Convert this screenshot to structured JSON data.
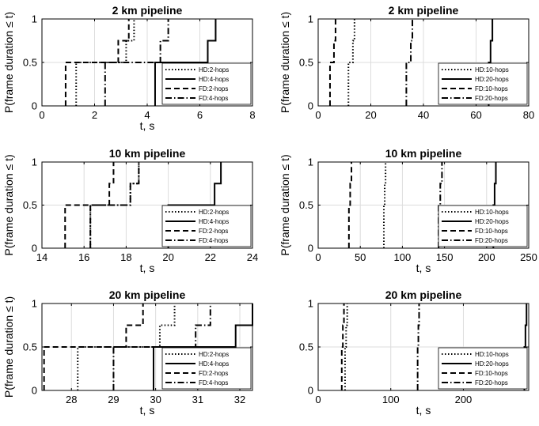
{
  "chart_data": [
    {
      "type": "line",
      "title": "2 km pipeline",
      "xlabel": "t, s",
      "ylabel": "P(frame duration ≤ t)",
      "xlim": [
        0,
        8
      ],
      "ylim": [
        0,
        1
      ],
      "xticks": [
        0,
        2,
        4,
        6,
        8
      ],
      "yticks": [
        0,
        0.5,
        1
      ],
      "grid": true,
      "legend_position": "bottom-right",
      "series": [
        {
          "name": "HD:2-hops",
          "style": "dotted",
          "x": [
            1.3,
            1.3,
            3.2,
            3.2,
            3.5,
            3.5
          ],
          "y": [
            0,
            0.5,
            0.5,
            0.75,
            0.75,
            1
          ]
        },
        {
          "name": "HD:4-hops",
          "style": "solid",
          "x": [
            4.3,
            4.3,
            6.3,
            6.3,
            6.6,
            6.6
          ],
          "y": [
            0,
            0.5,
            0.5,
            0.75,
            0.75,
            1
          ]
        },
        {
          "name": "FD:2-hops",
          "style": "dashed",
          "x": [
            0.9,
            0.9,
            2.9,
            2.9,
            3.3,
            3.3
          ],
          "y": [
            0,
            0.5,
            0.5,
            0.75,
            0.75,
            1
          ]
        },
        {
          "name": "FD:4-hops",
          "style": "dashdot",
          "x": [
            2.4,
            2.4,
            4.5,
            4.5,
            4.8,
            4.8
          ],
          "y": [
            0,
            0.5,
            0.5,
            0.75,
            0.75,
            1
          ]
        }
      ]
    },
    {
      "type": "line",
      "title": "2 km pipeline",
      "xlabel": "",
      "ylabel": "P(frame duration ≤ t)",
      "xlim": [
        0,
        80
      ],
      "ylim": [
        0,
        1
      ],
      "xticks": [
        0,
        20,
        40,
        60,
        80
      ],
      "yticks": [
        0,
        0.5,
        1
      ],
      "grid": true,
      "legend_position": "bottom-right",
      "series": [
        {
          "name": "HD:10-hops",
          "style": "dotted",
          "x": [
            11.5,
            11.5,
            13.2,
            13.2,
            13.8,
            13.8
          ],
          "y": [
            0,
            0.5,
            0.5,
            0.75,
            0.75,
            1
          ]
        },
        {
          "name": "HD:20-hops",
          "style": "solid",
          "x": [
            64.8,
            64.8,
            65.5,
            65.5,
            66.2,
            66.2
          ],
          "y": [
            0,
            0.5,
            0.5,
            0.75,
            0.75,
            1
          ]
        },
        {
          "name": "FD:10-hops",
          "style": "dashed",
          "x": [
            4.5,
            4.5,
            6.0,
            6.0,
            6.6,
            6.6
          ],
          "y": [
            0,
            0.5,
            0.5,
            0.75,
            0.75,
            1
          ]
        },
        {
          "name": "FD:20-hops",
          "style": "dashdot",
          "x": [
            33.5,
            33.5,
            35.2,
            35.2,
            35.8,
            35.8
          ],
          "y": [
            0,
            0.5,
            0.5,
            0.75,
            0.75,
            1
          ]
        }
      ]
    },
    {
      "type": "line",
      "title": "10 km pipeline",
      "xlabel": "t, s",
      "ylabel": "P(frame duration ≤ t)",
      "xlim": [
        14,
        24
      ],
      "ylim": [
        0,
        1
      ],
      "xticks": [
        14,
        16,
        18,
        20,
        22,
        24
      ],
      "yticks": [
        0,
        0.5,
        1
      ],
      "grid": true,
      "legend_position": "bottom-right",
      "series": [
        {
          "name": "HD:2-hops",
          "style": "dotted",
          "x": [
            16.3,
            16.3,
            18.2,
            18.2,
            18.6,
            18.6
          ],
          "y": [
            0,
            0.5,
            0.5,
            0.75,
            0.75,
            1
          ]
        },
        {
          "name": "HD:4-hops",
          "style": "solid",
          "x": [
            20.0,
            20.0,
            22.2,
            22.2,
            22.5,
            22.5
          ],
          "y": [
            0,
            0.5,
            0.5,
            0.75,
            0.75,
            1
          ]
        },
        {
          "name": "FD:2-hops",
          "style": "dashed",
          "x": [
            15.1,
            15.1,
            17.2,
            17.2,
            17.4,
            17.4
          ],
          "y": [
            0,
            0.5,
            0.5,
            0.75,
            0.75,
            1
          ]
        },
        {
          "name": "FD:4-hops",
          "style": "dashdot",
          "x": [
            16.3,
            16.3,
            18.2,
            18.2,
            18.6,
            18.6
          ],
          "y": [
            0,
            0.5,
            0.5,
            0.75,
            0.75,
            1
          ]
        }
      ]
    },
    {
      "type": "line",
      "title": "10 km pipeline",
      "xlabel": "t, s",
      "ylabel": "P(frame duration ≤ t)",
      "xlim": [
        0,
        250
      ],
      "ylim": [
        0,
        1
      ],
      "xticks": [
        0,
        50,
        100,
        150,
        200,
        250
      ],
      "yticks": [
        0,
        0.5,
        1
      ],
      "grid": true,
      "legend_position": "bottom-right",
      "series": [
        {
          "name": "HD:10-hops",
          "style": "dotted",
          "x": [
            78,
            78,
            79,
            79,
            80,
            80
          ],
          "y": [
            0,
            0.5,
            0.5,
            0.75,
            0.75,
            1
          ]
        },
        {
          "name": "HD:20-hops",
          "style": "solid",
          "x": [
            208,
            208,
            209.5,
            209.5,
            211,
            211
          ],
          "y": [
            0,
            0.5,
            0.5,
            0.75,
            0.75,
            1
          ]
        },
        {
          "name": "FD:10-hops",
          "style": "dashed",
          "x": [
            36.5,
            36.5,
            38,
            38,
            39.5,
            39.5
          ],
          "y": [
            0,
            0.5,
            0.5,
            0.75,
            0.75,
            1
          ]
        },
        {
          "name": "FD:20-hops",
          "style": "dashdot",
          "x": [
            143,
            143,
            145,
            145,
            147,
            147
          ],
          "y": [
            0,
            0.5,
            0.5,
            0.75,
            0.75,
            1
          ]
        }
      ]
    },
    {
      "type": "line",
      "title": "20 km pipeline",
      "xlabel": "t, s",
      "ylabel": "P(frame duration ≤ t)",
      "xlim": [
        27.3,
        32.3
      ],
      "ylim": [
        0,
        1
      ],
      "xticks": [
        28,
        29,
        30,
        31,
        32
      ],
      "yticks": [
        0,
        0.5,
        1
      ],
      "grid": true,
      "legend_position": "bottom-right",
      "series": [
        {
          "name": "HD:2-hops",
          "style": "dotted",
          "x": [
            28.15,
            28.15,
            30.1,
            30.1,
            30.45,
            30.45
          ],
          "y": [
            0,
            0.5,
            0.5,
            0.75,
            0.75,
            1
          ]
        },
        {
          "name": "HD:4-hops",
          "style": "solid",
          "x": [
            29.95,
            29.95,
            31.9,
            31.9,
            32.3,
            32.3
          ],
          "y": [
            0,
            0.5,
            0.5,
            0.75,
            0.75,
            1
          ]
        },
        {
          "name": "FD:2-hops",
          "style": "dashed",
          "x": [
            27.35,
            27.35,
            29.3,
            29.3,
            29.7,
            29.7
          ],
          "y": [
            0,
            0.5,
            0.5,
            0.75,
            0.75,
            1
          ]
        },
        {
          "name": "FD:4-hops",
          "style": "dashdot",
          "x": [
            29.0,
            29.0,
            30.95,
            30.95,
            31.3,
            31.3
          ],
          "y": [
            0,
            0.5,
            0.5,
            0.75,
            0.75,
            1
          ]
        }
      ]
    },
    {
      "type": "line",
      "title": "20 km pipeline",
      "xlabel": "t, s",
      "ylabel": "",
      "xlim": [
        0,
        290
      ],
      "ylim": [
        0,
        1
      ],
      "xticks": [
        0,
        100,
        200
      ],
      "yticks": [
        0,
        0.5,
        1
      ],
      "grid": true,
      "legend_position": "bottom-right",
      "series": [
        {
          "name": "HD:10-hops",
          "style": "dotted",
          "x": [
            37,
            37,
            38.5,
            38.5,
            40,
            40
          ],
          "y": [
            0,
            0.5,
            0.5,
            0.75,
            0.75,
            1
          ]
        },
        {
          "name": "HD:20-hops",
          "style": "solid",
          "x": [
            284,
            284,
            285.5,
            285.5,
            287,
            287
          ],
          "y": [
            0,
            0.5,
            0.5,
            0.75,
            0.75,
            1
          ]
        },
        {
          "name": "FD:10-hops",
          "style": "dashed",
          "x": [
            32.5,
            32.5,
            34,
            34,
            35.5,
            35.5
          ],
          "y": [
            0,
            0.5,
            0.5,
            0.75,
            0.75,
            1
          ]
        },
        {
          "name": "FD:20-hops",
          "style": "dashdot",
          "x": [
            137,
            137,
            138,
            138,
            139,
            139
          ],
          "y": [
            0,
            0.5,
            0.5,
            0.75,
            0.75,
            1
          ]
        }
      ]
    }
  ]
}
